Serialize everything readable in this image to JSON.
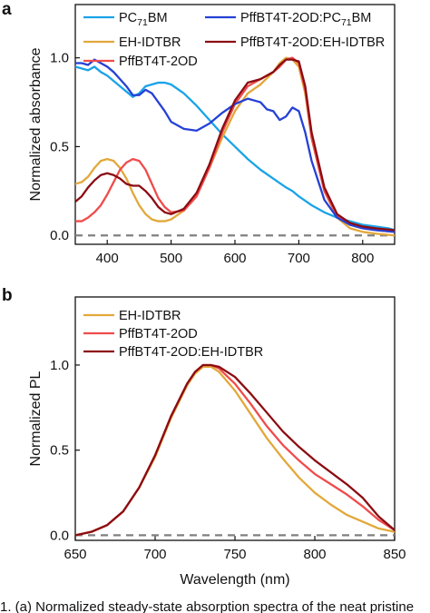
{
  "chart_data": [
    {
      "panel_label": "a",
      "type": "line",
      "xlabel": "",
      "ylabel": "Normalized absorbance",
      "xlim": [
        350,
        850
      ],
      "ylim": [
        -0.05,
        1.3
      ],
      "xticks": [
        400,
        500,
        600,
        700,
        800
      ],
      "yticks": [
        0.0,
        0.5,
        1.0
      ],
      "grid": false,
      "legend_position": "top",
      "series": [
        {
          "name": "PC71BM",
          "legend_label_main": "PC",
          "legend_label_sub": "71",
          "legend_label_tail": "BM",
          "color": "#1aa3e8",
          "x": [
            350,
            360,
            370,
            380,
            390,
            400,
            410,
            420,
            430,
            440,
            450,
            460,
            470,
            480,
            490,
            500,
            520,
            540,
            560,
            580,
            600,
            620,
            640,
            660,
            680,
            690,
            700,
            720,
            740,
            760,
            780,
            800,
            820,
            840,
            850
          ],
          "y": [
            0.95,
            0.94,
            0.93,
            0.95,
            0.92,
            0.9,
            0.87,
            0.84,
            0.81,
            0.78,
            0.8,
            0.84,
            0.85,
            0.86,
            0.86,
            0.85,
            0.8,
            0.73,
            0.65,
            0.57,
            0.5,
            0.43,
            0.37,
            0.32,
            0.27,
            0.25,
            0.22,
            0.17,
            0.13,
            0.1,
            0.08,
            0.06,
            0.05,
            0.04,
            0.03
          ]
        },
        {
          "name": "EH-IDTBR",
          "color": "#e2a83a",
          "x": [
            350,
            360,
            370,
            380,
            390,
            400,
            410,
            420,
            430,
            440,
            450,
            460,
            470,
            480,
            490,
            500,
            520,
            540,
            560,
            580,
            600,
            620,
            640,
            660,
            670,
            680,
            690,
            700,
            710,
            720,
            740,
            760,
            780,
            800,
            820,
            850
          ],
          "y": [
            0.29,
            0.3,
            0.33,
            0.38,
            0.42,
            0.43,
            0.42,
            0.38,
            0.32,
            0.24,
            0.17,
            0.12,
            0.09,
            0.08,
            0.08,
            0.09,
            0.14,
            0.24,
            0.38,
            0.55,
            0.7,
            0.8,
            0.85,
            0.92,
            0.97,
            1.0,
            0.99,
            0.95,
            0.8,
            0.55,
            0.25,
            0.1,
            0.04,
            0.02,
            0.01,
            0.0
          ]
        },
        {
          "name": "PffBT4T-2OD",
          "color": "#f04b4b",
          "x": [
            350,
            360,
            370,
            380,
            390,
            400,
            410,
            420,
            430,
            440,
            450,
            460,
            470,
            480,
            490,
            500,
            520,
            540,
            560,
            580,
            600,
            620,
            640,
            660,
            670,
            680,
            690,
            700,
            710,
            720,
            740,
            760,
            780,
            800,
            820,
            850
          ],
          "y": [
            0.08,
            0.08,
            0.1,
            0.13,
            0.17,
            0.23,
            0.3,
            0.37,
            0.41,
            0.43,
            0.42,
            0.37,
            0.29,
            0.21,
            0.16,
            0.13,
            0.14,
            0.22,
            0.38,
            0.58,
            0.74,
            0.84,
            0.88,
            0.92,
            0.95,
            0.99,
            1.0,
            0.97,
            0.82,
            0.55,
            0.25,
            0.11,
            0.06,
            0.04,
            0.03,
            0.02
          ]
        },
        {
          "name": "PffBT4T-2OD:PC71BM",
          "legend_label_main": "PffBT4T-2OD:PC",
          "legend_label_sub": "71",
          "legend_label_tail": "BM",
          "color": "#2541d6",
          "x": [
            350,
            360,
            370,
            380,
            390,
            400,
            410,
            420,
            430,
            440,
            450,
            460,
            470,
            480,
            490,
            500,
            520,
            540,
            560,
            580,
            600,
            620,
            640,
            650,
            660,
            670,
            680,
            690,
            700,
            710,
            720,
            740,
            760,
            780,
            800,
            820,
            850
          ],
          "y": [
            0.97,
            0.97,
            0.96,
            0.99,
            0.97,
            0.95,
            0.92,
            0.88,
            0.84,
            0.79,
            0.79,
            0.82,
            0.8,
            0.75,
            0.7,
            0.64,
            0.6,
            0.59,
            0.63,
            0.69,
            0.74,
            0.77,
            0.75,
            0.71,
            0.7,
            0.65,
            0.67,
            0.72,
            0.7,
            0.58,
            0.42,
            0.2,
            0.1,
            0.06,
            0.04,
            0.03,
            0.02
          ]
        },
        {
          "name": "PffBT4T-2OD:EH-IDTBR",
          "color": "#8b0d12",
          "x": [
            350,
            360,
            370,
            380,
            390,
            400,
            410,
            420,
            430,
            440,
            450,
            460,
            470,
            480,
            490,
            500,
            520,
            540,
            560,
            580,
            600,
            620,
            640,
            660,
            670,
            680,
            690,
            700,
            710,
            720,
            740,
            760,
            780,
            800,
            820,
            850
          ],
          "y": [
            0.19,
            0.22,
            0.27,
            0.31,
            0.34,
            0.35,
            0.34,
            0.32,
            0.29,
            0.28,
            0.28,
            0.25,
            0.21,
            0.16,
            0.13,
            0.12,
            0.15,
            0.24,
            0.4,
            0.6,
            0.76,
            0.86,
            0.88,
            0.92,
            0.96,
            0.99,
            0.99,
            0.98,
            0.84,
            0.58,
            0.27,
            0.12,
            0.07,
            0.05,
            0.04,
            0.03
          ]
        }
      ],
      "reference_line": {
        "y": 0.0,
        "style": "dashed",
        "color": "#808080"
      }
    },
    {
      "panel_label": "b",
      "type": "line",
      "xlabel": "Wavelength (nm)",
      "ylabel": "Normalized PL",
      "xlim": [
        650,
        850
      ],
      "ylim": [
        -0.03,
        1.4
      ],
      "xticks": [
        650,
        700,
        750,
        800,
        850
      ],
      "yticks": [
        0.0,
        0.5,
        1.0
      ],
      "grid": false,
      "legend_position": "top-left",
      "series": [
        {
          "name": "EH-IDTBR",
          "color": "#e2a83a",
          "x": [
            650,
            660,
            670,
            680,
            690,
            700,
            710,
            720,
            725,
            730,
            735,
            740,
            750,
            760,
            770,
            780,
            790,
            800,
            810,
            820,
            830,
            840,
            850
          ],
          "y": [
            0.0,
            0.02,
            0.06,
            0.14,
            0.28,
            0.46,
            0.69,
            0.88,
            0.95,
            0.99,
            0.99,
            0.96,
            0.85,
            0.71,
            0.57,
            0.45,
            0.34,
            0.25,
            0.18,
            0.12,
            0.08,
            0.04,
            0.02
          ]
        },
        {
          "name": "PffBT4T-2OD",
          "color": "#f04b4b",
          "x": [
            650,
            660,
            670,
            680,
            690,
            700,
            710,
            720,
            725,
            730,
            735,
            740,
            750,
            760,
            770,
            780,
            790,
            800,
            810,
            820,
            830,
            840,
            850
          ],
          "y": [
            0.0,
            0.02,
            0.06,
            0.14,
            0.28,
            0.47,
            0.7,
            0.89,
            0.96,
            1.0,
            1.0,
            0.98,
            0.89,
            0.77,
            0.64,
            0.53,
            0.44,
            0.36,
            0.3,
            0.24,
            0.17,
            0.09,
            0.03
          ]
        },
        {
          "name": "PffBT4T-2OD:EH-IDTBR",
          "color": "#8b0d12",
          "x": [
            650,
            660,
            670,
            680,
            690,
            700,
            710,
            720,
            725,
            730,
            735,
            740,
            750,
            760,
            770,
            780,
            790,
            800,
            810,
            820,
            830,
            840,
            850
          ],
          "y": [
            0.0,
            0.02,
            0.06,
            0.14,
            0.28,
            0.47,
            0.7,
            0.89,
            0.96,
            1.0,
            1.0,
            0.99,
            0.93,
            0.83,
            0.72,
            0.61,
            0.52,
            0.44,
            0.37,
            0.3,
            0.22,
            0.11,
            0.03
          ]
        }
      ],
      "reference_line": {
        "y": 0.0,
        "style": "dashed",
        "color": "#808080"
      }
    }
  ],
  "caption": "1. (a) Normalized steady-state absorption spectra of the neat pristine"
}
